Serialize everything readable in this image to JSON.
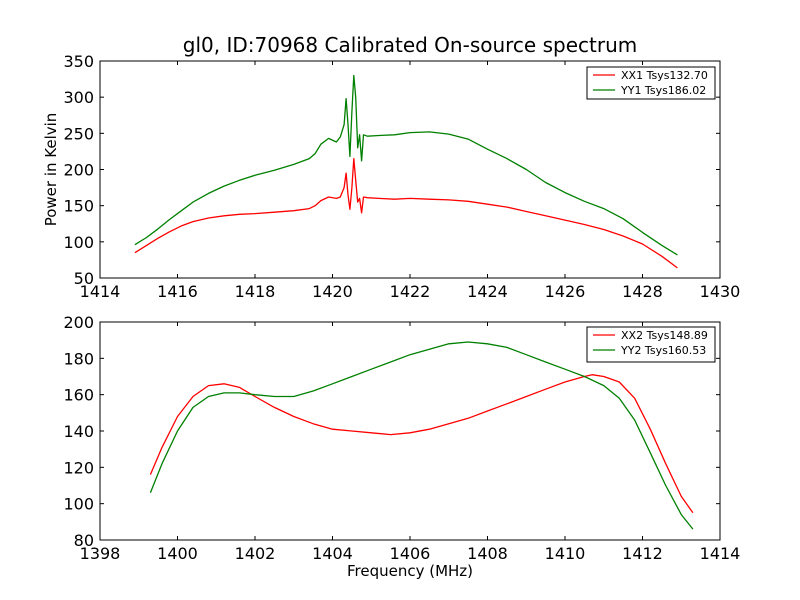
{
  "figure": {
    "title": "gl0, ID:70968 Calibrated On-source spectrum"
  },
  "chart_data": [
    {
      "type": "line",
      "title": "gl0, ID:70968 Calibrated On-source spectrum",
      "xlabel": "",
      "ylabel": "Power in Kelvin",
      "xlim": [
        1414,
        1430
      ],
      "ylim": [
        50,
        350
      ],
      "xticks": [
        1414,
        1416,
        1418,
        1420,
        1422,
        1424,
        1426,
        1428,
        1430
      ],
      "yticks": [
        50,
        100,
        150,
        200,
        250,
        300,
        350
      ],
      "grid": false,
      "legend_position": "top-right",
      "series": [
        {
          "name": "XX1 Tsys132.70",
          "color": "#ff0000",
          "x": [
            1414.9,
            1415.2,
            1415.5,
            1415.8,
            1416.1,
            1416.4,
            1416.8,
            1417.2,
            1417.6,
            1418.0,
            1418.5,
            1419.0,
            1419.4,
            1419.55,
            1419.7,
            1419.9,
            1420.1,
            1420.2,
            1420.3,
            1420.35,
            1420.4,
            1420.45,
            1420.5,
            1420.55,
            1420.6,
            1420.65,
            1420.7,
            1420.75,
            1420.8,
            1420.9,
            1421.2,
            1421.6,
            1422.0,
            1422.5,
            1423.0,
            1423.5,
            1424.0,
            1424.5,
            1425.0,
            1425.5,
            1426.0,
            1426.5,
            1427.0,
            1427.5,
            1428.0,
            1428.5,
            1428.9
          ],
          "values": [
            85,
            95,
            105,
            114,
            122,
            128,
            133,
            136,
            138,
            139,
            141,
            143,
            146,
            150,
            157,
            162,
            160,
            162,
            175,
            195,
            165,
            145,
            175,
            215,
            185,
            155,
            160,
            140,
            162,
            161,
            160,
            159,
            160,
            159,
            158,
            156,
            152,
            148,
            142,
            136,
            130,
            124,
            117,
            108,
            97,
            80,
            64
          ]
        },
        {
          "name": "YY1 Tsys186.02",
          "color": "#008000",
          "x": [
            1414.9,
            1415.2,
            1415.5,
            1415.8,
            1416.1,
            1416.4,
            1416.8,
            1417.2,
            1417.6,
            1418.0,
            1418.5,
            1419.0,
            1419.4,
            1419.55,
            1419.7,
            1419.9,
            1420.1,
            1420.2,
            1420.3,
            1420.35,
            1420.4,
            1420.45,
            1420.5,
            1420.55,
            1420.6,
            1420.65,
            1420.7,
            1420.75,
            1420.8,
            1420.9,
            1421.2,
            1421.6,
            1422.0,
            1422.5,
            1423.0,
            1423.5,
            1424.0,
            1424.5,
            1425.0,
            1425.5,
            1426.0,
            1426.5,
            1427.0,
            1427.5,
            1428.0,
            1428.5,
            1428.9
          ],
          "values": [
            96,
            106,
            118,
            131,
            143,
            155,
            167,
            177,
            185,
            192,
            199,
            207,
            215,
            222,
            235,
            243,
            238,
            245,
            262,
            298,
            262,
            218,
            280,
            330,
            300,
            230,
            248,
            212,
            248,
            246,
            247,
            248,
            251,
            252,
            249,
            242,
            228,
            215,
            200,
            182,
            168,
            156,
            146,
            132,
            113,
            95,
            82
          ]
        }
      ]
    },
    {
      "type": "line",
      "title": "",
      "xlabel": "Frequency (MHz)",
      "ylabel": "",
      "xlim": [
        1398,
        1414
      ],
      "ylim": [
        80,
        200
      ],
      "xticks": [
        1398,
        1400,
        1402,
        1404,
        1406,
        1408,
        1410,
        1412,
        1414
      ],
      "yticks": [
        80,
        100,
        120,
        140,
        160,
        180,
        200
      ],
      "grid": false,
      "legend_position": "top-right",
      "series": [
        {
          "name": "XX2 Tsys148.89",
          "color": "#ff0000",
          "x": [
            1399.3,
            1399.6,
            1400.0,
            1400.4,
            1400.8,
            1401.2,
            1401.6,
            1402.0,
            1402.5,
            1403.0,
            1403.5,
            1404.0,
            1404.5,
            1405.0,
            1405.5,
            1406.0,
            1406.5,
            1407.0,
            1407.5,
            1408.0,
            1408.5,
            1409.0,
            1409.5,
            1410.0,
            1410.5,
            1410.7,
            1411.0,
            1411.4,
            1411.8,
            1412.2,
            1412.6,
            1413.0,
            1413.3
          ],
          "values": [
            116,
            131,
            148,
            159,
            165,
            166,
            164,
            159,
            153,
            148,
            144,
            141,
            140,
            139,
            138,
            139,
            141,
            144,
            147,
            151,
            155,
            159,
            163,
            167,
            170,
            171,
            170,
            167,
            158,
            141,
            122,
            104,
            95
          ]
        },
        {
          "name": "YY2 Tsys160.53",
          "color": "#008000",
          "x": [
            1399.3,
            1399.6,
            1400.0,
            1400.4,
            1400.8,
            1401.2,
            1401.6,
            1402.0,
            1402.5,
            1403.0,
            1403.5,
            1404.0,
            1404.5,
            1405.0,
            1405.5,
            1406.0,
            1406.5,
            1407.0,
            1407.5,
            1408.0,
            1408.5,
            1409.0,
            1409.5,
            1410.0,
            1410.5,
            1411.0,
            1411.4,
            1411.8,
            1412.2,
            1412.6,
            1413.0,
            1413.3
          ],
          "values": [
            106,
            122,
            140,
            153,
            159,
            161,
            161,
            160,
            159,
            159,
            162,
            166,
            170,
            174,
            178,
            182,
            185,
            188,
            189,
            188,
            186,
            182,
            178,
            174,
            170,
            165,
            158,
            146,
            128,
            110,
            94,
            86
          ]
        }
      ]
    }
  ]
}
